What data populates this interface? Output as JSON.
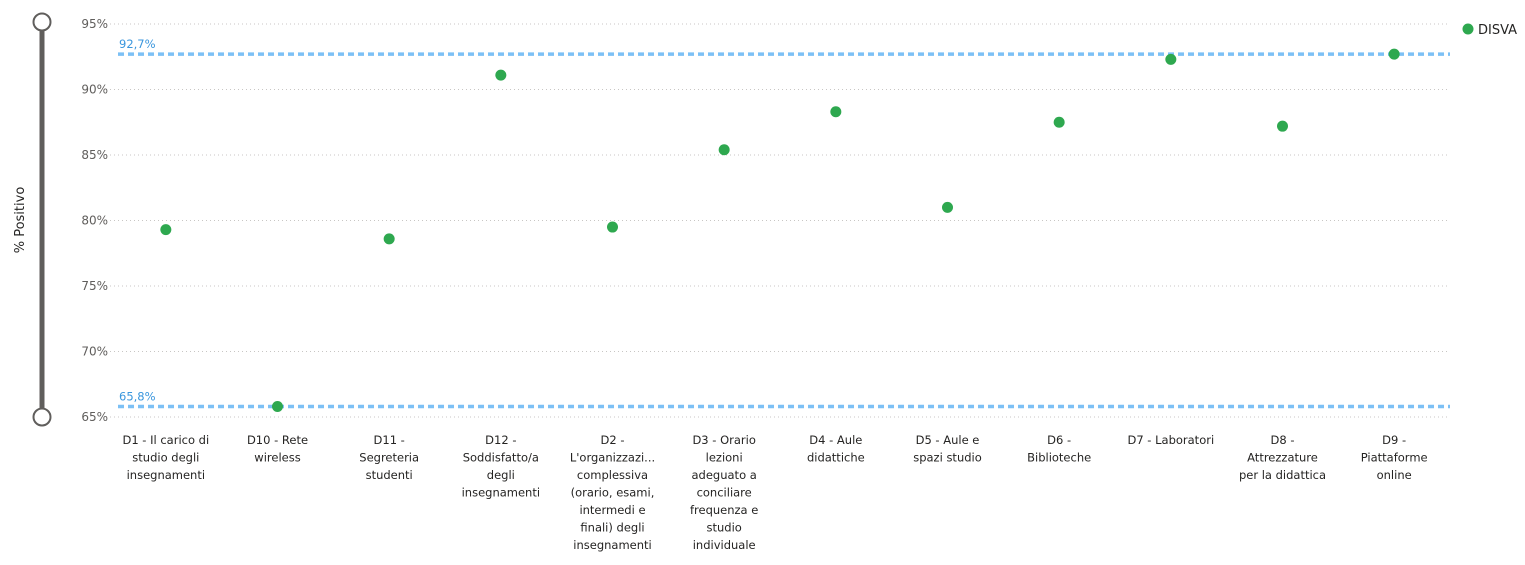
{
  "chart_data": {
    "type": "scatter",
    "ylabel": "% Positivo",
    "ylim": [
      65,
      95
    ],
    "y_ticks": [
      "65%",
      "70%",
      "75%",
      "80%",
      "85%",
      "90%",
      "95%"
    ],
    "y_tick_values": [
      65,
      70,
      75,
      80,
      85,
      90,
      95
    ],
    "grid": true,
    "legend_position": "top-right",
    "categories": [
      [
        "D1 - Il carico di",
        "studio degli",
        "insegnamenti"
      ],
      [
        "D10 - Rete",
        "wireless"
      ],
      [
        "D11 -",
        "Segreteria",
        "studenti"
      ],
      [
        "D12 -",
        "Soddisfatto/a",
        "degli",
        "insegnamenti"
      ],
      [
        "D2 -",
        "L'organizzazi...",
        "complessiva",
        "(orario, esami,",
        "intermedi e",
        "finali) degli",
        "insegnamenti"
      ],
      [
        "D3 - Orario",
        "lezioni",
        "adeguato a",
        "conciliare",
        "frequenza e",
        "studio",
        "individuale"
      ],
      [
        "D4 - Aule",
        "didattiche"
      ],
      [
        "D5 - Aule e",
        "spazi studio"
      ],
      [
        "D6 -",
        "Biblioteche"
      ],
      [
        "D7 - Laboratori"
      ],
      [
        "D8 -",
        "Attrezzature",
        "per la didattica"
      ],
      [
        "D9 -",
        "Piattaforme",
        "online"
      ]
    ],
    "series": [
      {
        "name": "DISVA",
        "color": "#2ea84f",
        "values": [
          79.3,
          65.8,
          78.6,
          91.1,
          79.5,
          85.4,
          88.3,
          81.0,
          87.5,
          92.3,
          87.2,
          92.7
        ]
      }
    ],
    "reference_lines": [
      {
        "label": "92,7%",
        "value": 92.7,
        "color": "#7cc0f5"
      },
      {
        "label": "65,8%",
        "value": 65.8,
        "color": "#7cc0f5"
      }
    ]
  },
  "slider": {
    "icon": "range-slider-icon"
  }
}
